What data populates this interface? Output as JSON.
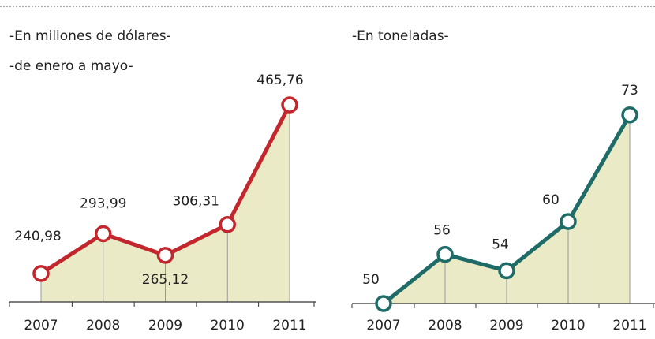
{
  "chart_data": [
    {
      "type": "line",
      "subtitles": [
        "-En millones de dólares-",
        "-de enero a mayo-"
      ],
      "categories": [
        "2007",
        "2008",
        "2009",
        "2010",
        "2011"
      ],
      "values": [
        240.98,
        293.99,
        265.12,
        306.31,
        465.76
      ],
      "value_labels": [
        "240,98",
        "293,99",
        "265,12",
        "306,31",
        "465,76"
      ],
      "color": "#c1272d",
      "ylim": [
        203,
        490
      ]
    },
    {
      "type": "line",
      "subtitles": [
        "-En toneladas-"
      ],
      "categories": [
        "2007",
        "2008",
        "2009",
        "2010",
        "2011"
      ],
      "values": [
        50,
        56,
        54,
        60,
        73
      ],
      "color": "#1f6b67",
      "ylim": [
        50,
        75
      ]
    }
  ]
}
